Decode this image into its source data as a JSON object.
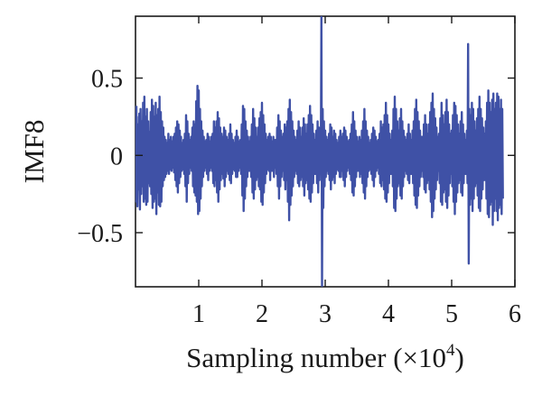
{
  "chart_data": {
    "type": "line",
    "ylabel": "IMF8",
    "xlabel": {
      "main": "Sampling number (×10",
      "superscript": "4",
      "suffix": ")"
    },
    "xlim": [
      0,
      6
    ],
    "ylim": [
      -0.85,
      0.9
    ],
    "xticks": [
      {
        "value": 1,
        "label": "1"
      },
      {
        "value": 2,
        "label": "2"
      },
      {
        "value": 3,
        "label": "3"
      },
      {
        "value": 4,
        "label": "4"
      },
      {
        "value": 5,
        "label": "5"
      },
      {
        "value": 6,
        "label": "6"
      }
    ],
    "yticks": [
      {
        "value": 0.5,
        "label": "0.5"
      },
      {
        "value": 0,
        "label": "0"
      },
      {
        "value": -0.5,
        "label": "−0.5"
      }
    ],
    "grid": false,
    "line_color": "#3f51a6",
    "series": [
      {
        "x_step": 0.01,
        "x_start": 0.0,
        "values": [
          0.32,
          -0.3,
          0.25,
          -0.33,
          0.2,
          -0.22,
          0.27,
          -0.35,
          0.3,
          -0.25,
          0.22,
          -0.2,
          0.34,
          -0.3,
          0.38,
          -0.28,
          0.25,
          -0.32,
          0.3,
          -0.3,
          0.22,
          -0.18,
          0.15,
          -0.2,
          0.28,
          -0.25,
          0.36,
          -0.34,
          0.32,
          -0.3,
          0.25,
          -0.28,
          0.34,
          -0.38,
          0.26,
          -0.24,
          0.3,
          -0.32,
          0.38,
          -0.33,
          0.28,
          -0.3,
          0.22,
          -0.2,
          0.18,
          -0.16,
          0.12,
          -0.14,
          0.1,
          -0.12,
          0.08,
          -0.1,
          0.14,
          -0.12,
          0.1,
          -0.09,
          0.12,
          -0.1,
          0.09,
          -0.08,
          0.12,
          -0.11,
          0.14,
          -0.16,
          0.18,
          -0.2,
          0.22,
          -0.24,
          0.2,
          -0.18,
          0.16,
          -0.14,
          0.12,
          -0.1,
          0.08,
          -0.09,
          0.1,
          -0.12,
          0.14,
          -0.2,
          0.26,
          -0.3,
          0.22,
          -0.18,
          0.14,
          -0.12,
          0.1,
          -0.08,
          0.12,
          -0.1,
          0.18,
          -0.2,
          0.22,
          -0.24,
          0.2,
          -0.26,
          0.35,
          -0.3,
          0.45,
          -0.38,
          0.42,
          -0.36,
          0.3,
          -0.28,
          0.22,
          -0.2,
          0.16,
          -0.14,
          0.12,
          -0.1,
          0.09,
          -0.08,
          0.1,
          -0.12,
          0.14,
          -0.16,
          0.12,
          -0.1,
          0.09,
          -0.08,
          0.12,
          -0.1,
          0.14,
          -0.18,
          0.22,
          -0.2,
          0.18,
          -0.16,
          0.22,
          -0.24,
          0.28,
          -0.3,
          0.24,
          -0.22,
          0.18,
          -0.16,
          0.14,
          -0.12,
          0.12,
          -0.15,
          0.18,
          -0.2,
          0.16,
          -0.14,
          0.12,
          -0.1,
          0.1,
          -0.12,
          0.14,
          -0.16,
          0.2,
          -0.18,
          0.14,
          -0.12,
          0.1,
          -0.09,
          0.08,
          -0.1,
          0.12,
          -0.14,
          0.16,
          -0.14,
          0.12,
          -0.1,
          0.09,
          -0.08,
          0.1,
          -0.12,
          0.2,
          -0.26,
          0.32,
          -0.36,
          0.3,
          -0.28,
          0.22,
          -0.2,
          0.16,
          -0.14,
          0.12,
          -0.1,
          0.09,
          -0.1,
          0.12,
          -0.14,
          0.2,
          -0.24,
          0.3,
          -0.28,
          0.24,
          -0.22,
          0.18,
          -0.16,
          0.12,
          -0.14,
          0.18,
          -0.2,
          0.24,
          -0.22,
          0.28,
          -0.3,
          0.34,
          -0.32,
          0.26,
          -0.24,
          0.2,
          -0.18,
          0.14,
          -0.12,
          0.1,
          -0.09,
          0.12,
          -0.1,
          0.14,
          -0.16,
          0.12,
          -0.1,
          0.09,
          -0.1,
          0.12,
          -0.14,
          0.1,
          -0.08,
          0.1,
          -0.12,
          0.18,
          -0.2,
          0.26,
          -0.28,
          0.22,
          -0.2,
          0.16,
          -0.14,
          0.12,
          -0.1,
          0.14,
          -0.16,
          0.2,
          -0.22,
          0.18,
          -0.16,
          0.22,
          -0.3,
          0.3,
          -0.42,
          0.36,
          -0.32,
          0.28,
          -0.26,
          0.22,
          -0.2,
          0.16,
          -0.14,
          0.12,
          -0.1,
          0.1,
          -0.12,
          0.16,
          -0.18,
          0.22,
          -0.2,
          0.18,
          -0.16,
          0.12,
          -0.14,
          0.18,
          -0.2,
          0.24,
          -0.26,
          0.2,
          -0.18,
          0.14,
          -0.16,
          0.2,
          -0.22,
          0.26,
          -0.28,
          0.32,
          -0.3,
          0.26,
          -0.24,
          0.2,
          -0.18,
          0.14,
          -0.12,
          0.1,
          -0.12,
          0.16,
          -0.18,
          0.22,
          -0.24,
          0.18,
          -0.16,
          0.12,
          -0.1,
          0.9,
          -0.88,
          0.3,
          -0.34,
          0.22,
          -0.2,
          0.16,
          -0.14,
          0.12,
          -0.1,
          0.1,
          -0.12,
          0.14,
          -0.16,
          0.2,
          -0.22,
          0.18,
          -0.16,
          0.12,
          -0.14,
          0.16,
          -0.18,
          0.14,
          -0.12,
          0.1,
          -0.09,
          0.08,
          -0.1,
          0.12,
          -0.14,
          0.16,
          -0.14,
          0.12,
          -0.1,
          0.14,
          -0.16,
          0.18,
          -0.2,
          0.16,
          -0.14,
          0.12,
          -0.1,
          0.09,
          -0.08,
          0.1,
          -0.12,
          0.14,
          -0.16,
          0.2,
          -0.24,
          0.28,
          -0.26,
          0.22,
          -0.2,
          0.16,
          -0.14,
          0.12,
          -0.1,
          0.09,
          -0.1,
          0.12,
          -0.14,
          0.1,
          -0.12,
          0.16,
          -0.18,
          0.22,
          -0.24,
          0.3,
          -0.28,
          0.22,
          -0.2,
          0.16,
          -0.14,
          0.12,
          -0.1,
          0.08,
          -0.09,
          0.1,
          -0.12,
          0.14,
          -0.16,
          0.18,
          -0.2,
          0.16,
          -0.14,
          0.12,
          -0.1,
          0.09,
          -0.08,
          0.1,
          -0.12,
          0.14,
          -0.18,
          0.22,
          -0.2,
          0.18,
          -0.16,
          0.2,
          -0.22,
          0.26,
          -0.28,
          0.34,
          -0.3,
          0.26,
          -0.24,
          0.2,
          -0.18,
          0.14,
          -0.12,
          0.1,
          -0.12,
          0.16,
          -0.2,
          0.3,
          -0.34,
          0.38,
          -0.36,
          0.3,
          -0.28,
          0.22,
          -0.2,
          0.16,
          -0.18,
          0.24,
          -0.26,
          0.3,
          -0.28,
          0.22,
          -0.2,
          0.16,
          -0.14,
          0.12,
          -0.1,
          0.1,
          -0.12,
          0.14,
          -0.16,
          0.2,
          -0.18,
          0.14,
          -0.12,
          0.1,
          -0.12,
          0.16,
          -0.18,
          0.22,
          -0.26,
          0.3,
          -0.32,
          0.36,
          -0.34,
          0.28,
          -0.26,
          0.22,
          -0.2,
          0.16,
          -0.14,
          0.12,
          -0.1,
          0.12,
          -0.14,
          0.2,
          -0.22,
          0.26,
          -0.24,
          0.2,
          -0.18,
          0.14,
          -0.16,
          0.2,
          -0.22,
          0.28,
          -0.3,
          0.34,
          -0.4,
          0.4,
          -0.36,
          0.3,
          -0.28,
          0.24,
          -0.22,
          0.18,
          -0.16,
          0.12,
          -0.1,
          0.14,
          -0.18,
          0.24,
          -0.3,
          0.34,
          -0.32,
          0.26,
          -0.24,
          0.2,
          -0.22,
          0.28,
          -0.3,
          0.36,
          -0.34,
          0.28,
          -0.26,
          0.2,
          -0.18,
          0.14,
          -0.12,
          0.16,
          -0.2,
          0.26,
          -0.3,
          0.34,
          -0.38,
          0.32,
          -0.3,
          0.26,
          -0.24,
          0.2,
          -0.18,
          0.14,
          -0.16,
          0.22,
          -0.24,
          0.28,
          -0.26,
          0.2,
          -0.18,
          0.14,
          -0.12,
          0.1,
          -0.12,
          0.16,
          -0.18,
          0.72,
          -0.7,
          0.3,
          -0.32,
          0.26,
          -0.28,
          0.34,
          -0.36,
          0.3,
          -0.28,
          0.22,
          -0.2,
          0.16,
          -0.18,
          0.24,
          -0.26,
          0.3,
          -0.34,
          0.38,
          -0.36,
          0.3,
          -0.28,
          0.24,
          -0.22,
          0.18,
          -0.16,
          0.14,
          -0.16,
          0.22,
          -0.28,
          0.34,
          -0.38,
          0.42,
          -0.4,
          0.34,
          -0.32,
          0.28,
          -0.3,
          0.36,
          -0.45,
          0.4,
          -0.36,
          0.3,
          -0.28,
          0.34,
          -0.36,
          0.4,
          -0.42,
          0.38,
          -0.34,
          0.3,
          -0.32,
          0.36,
          -0.38,
          0.3,
          -0.28
        ]
      }
    ]
  }
}
